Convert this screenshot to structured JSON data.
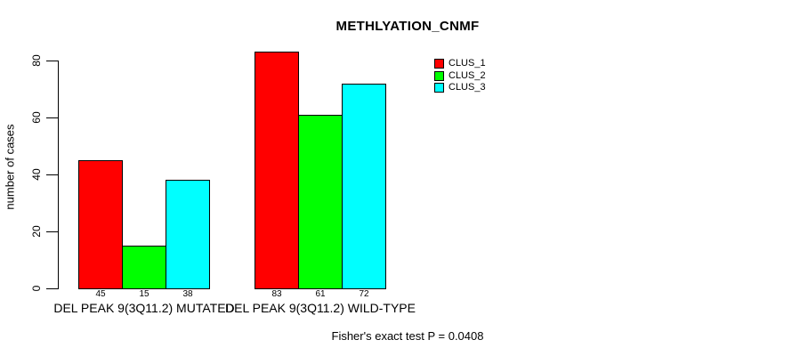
{
  "title": "METHLYATION_CNMF",
  "y_axis": {
    "label": "number of cases"
  },
  "footer": "Fisher's exact test P = 0.0408",
  "chart_data": {
    "type": "bar",
    "title": "METHLYATION_CNMF",
    "categories": [
      "DEL PEAK 9(3Q11.2) MUTATED",
      "DEL PEAK 9(3Q11.2) WILD-TYPE"
    ],
    "series": [
      {
        "name": "CLUS_1",
        "color": "#FF0000",
        "values": [
          45,
          83
        ]
      },
      {
        "name": "CLUS_2",
        "color": "#00FF00",
        "values": [
          15,
          61
        ]
      },
      {
        "name": "CLUS_3",
        "color": "#00FFFF",
        "values": [
          38,
          72
        ]
      }
    ],
    "bar_value_labels": [
      [
        45,
        15,
        38
      ],
      [
        83,
        61,
        72
      ]
    ],
    "xlabel": "",
    "ylabel": "number of cases",
    "ylim": [
      0,
      83
    ],
    "yticks": [
      0,
      20,
      40,
      60,
      80
    ],
    "grid": false,
    "legend_position": "top-right",
    "annotation": "Fisher's exact test P = 0.0408"
  }
}
